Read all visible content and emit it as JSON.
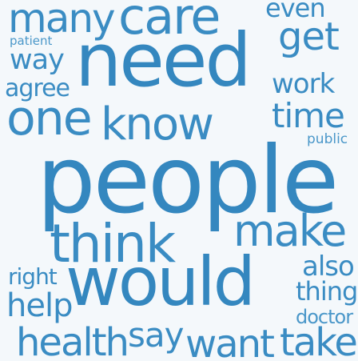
{
  "colors": {
    "background": "#f4f8fb",
    "word": "#3a8cc3"
  },
  "words": {
    "people": "people",
    "need": "need",
    "would": "would",
    "care": "care",
    "many": "many",
    "get": "get",
    "even": "even",
    "patient": "patient",
    "way": "way",
    "agree": "agree",
    "work": "work",
    "one": "one",
    "know": "know",
    "time": "time",
    "public": "public",
    "think": "think",
    "make": "make",
    "also": "also",
    "right": "right",
    "thing": "thing",
    "help": "help",
    "doctor": "doctor",
    "health": "health",
    "say": "say",
    "want": "want",
    "take": "take"
  }
}
